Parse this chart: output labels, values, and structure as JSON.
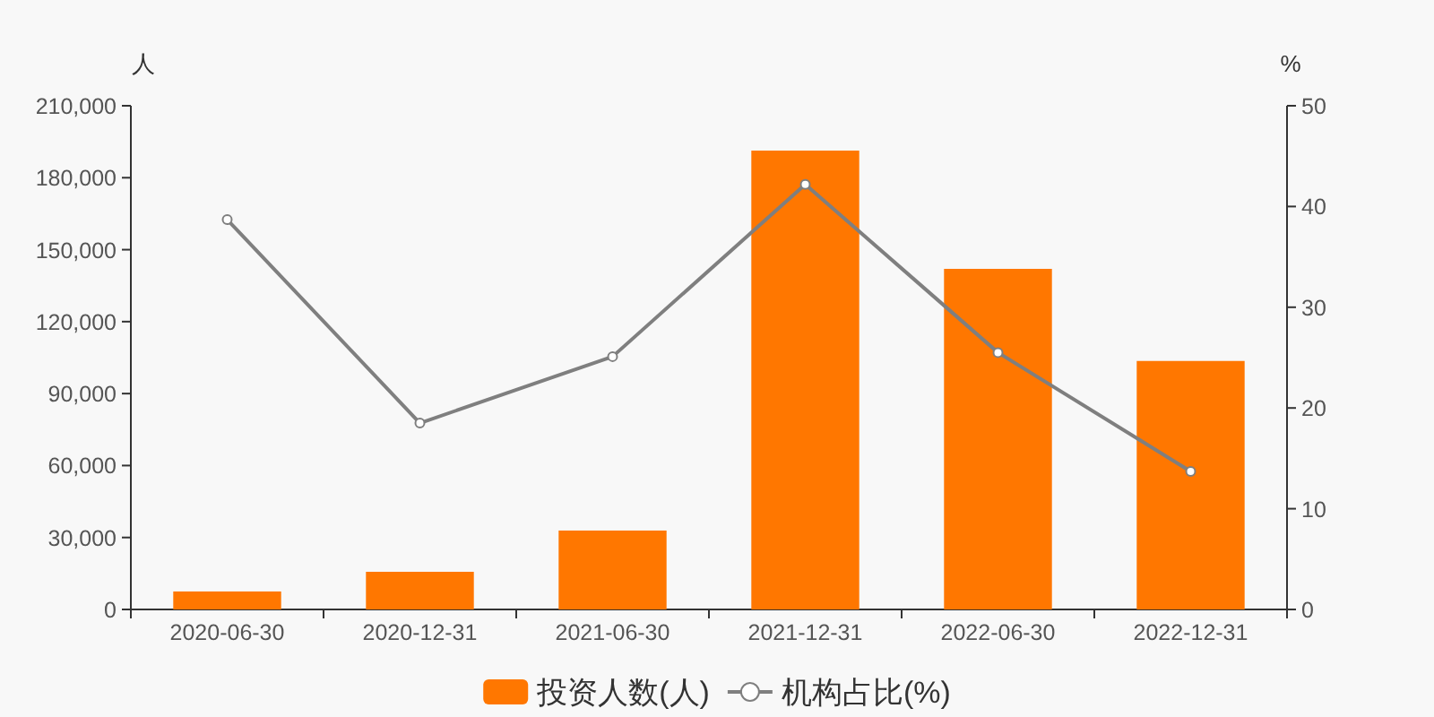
{
  "chart_data": {
    "type": "bar",
    "categories": [
      "2020-06-30",
      "2020-12-31",
      "2021-06-30",
      "2021-12-31",
      "2022-06-30",
      "2022-12-31"
    ],
    "ylabel": "人",
    "y2label": "%",
    "ylim": [
      0,
      210000
    ],
    "yticks": [
      0,
      {
        "value": 30000,
        "label": "30,000"
      },
      {
        "value": 60000,
        "label": "60,000"
      },
      {
        "value": 90000,
        "label": "90,000"
      },
      {
        "value": 120000,
        "label": "120,000"
      },
      {
        "value": 150000,
        "label": "150,000"
      },
      {
        "value": 180000,
        "label": "180,000"
      },
      {
        "value": 210000,
        "label": "210,000"
      }
    ],
    "y2lim": [
      0,
      50
    ],
    "y2ticks": [
      0,
      10,
      20,
      30,
      40,
      50
    ],
    "series": [
      {
        "name": "投资人数(人)",
        "color": "#ff7700",
        "values": [
          7500,
          15700,
          32900,
          191300,
          142000,
          103600
        ]
      },
      {
        "name": "机构占比(%)",
        "type": "line",
        "axis": "y2",
        "color": "#7f7f7f",
        "marker": "circle",
        "values": [
          38.7,
          18.5,
          25.1,
          42.2,
          25.5,
          13.7
        ]
      }
    ],
    "legend": "bottom"
  }
}
